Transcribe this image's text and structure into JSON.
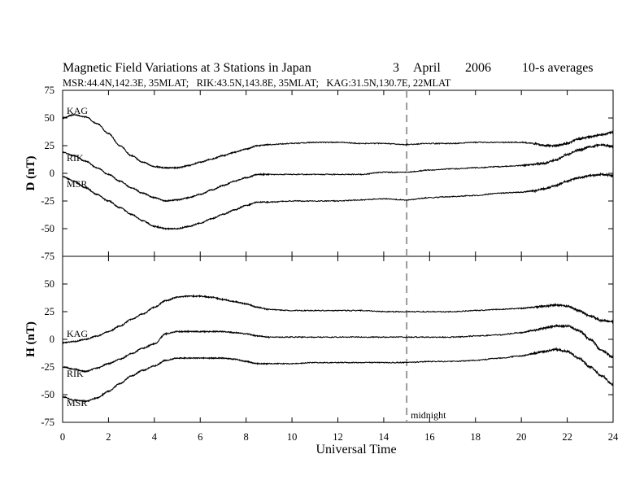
{
  "chart_data": {
    "type": "line",
    "title": "Magnetic Field Variations at 3 Stations in Japan",
    "date_day": "3",
    "date_month": "April",
    "date_year": "2006",
    "averaging": "10-s averages",
    "subtitle": "MSR:44.4N,142.3E, 35MLAT;   RIK:43.5N,143.8E, 35MLAT;   KAG:31.5N,130.7E, 22MLAT",
    "xlabel": "Universal Time",
    "xlim": [
      0,
      24
    ],
    "xticks": [
      0,
      2,
      4,
      6,
      8,
      10,
      12,
      14,
      16,
      18,
      20,
      22,
      24
    ],
    "midnight_ut": 15,
    "midnight_label": "midnight",
    "grid": false,
    "panels": [
      {
        "ylabel": "D (nT)",
        "ylim": [
          -75,
          75
        ],
        "yticks": [
          -75,
          -50,
          -25,
          0,
          25,
          50,
          75
        ],
        "series": [
          {
            "name": "KAG",
            "x": [
              0,
              0.5,
              1,
              1.5,
              2,
              2.5,
              3,
              3.5,
              4,
              4.5,
              5,
              5.5,
              6,
              6.5,
              7,
              7.5,
              8,
              8.5,
              9,
              10,
              11,
              12,
              13,
              14,
              15,
              16,
              17,
              18,
              19,
              20,
              20.5,
              21,
              21.5,
              22,
              22.5,
              23,
              23.5,
              24
            ],
            "y": [
              50,
              53,
              51,
              45,
              36,
              25,
              16,
              10,
              6,
              5,
              5,
              7,
              10,
              13,
              16,
              19,
              22,
              25,
              26,
              27,
              28,
              28,
              27,
              27,
              26,
              27,
              27,
              28,
              28,
              28,
              27,
              25,
              25,
              27,
              31,
              33,
              35,
              37
            ]
          },
          {
            "name": "RIK",
            "x": [
              0,
              0.5,
              1,
              1.5,
              2,
              2.5,
              3,
              3.5,
              4,
              4.5,
              5,
              5.5,
              6,
              6.5,
              7,
              7.5,
              8,
              8.5,
              9,
              10,
              11,
              12,
              13,
              14,
              15,
              16,
              17,
              18,
              19,
              20,
              20.5,
              21,
              21.5,
              22,
              22.5,
              23,
              23.5,
              24
            ],
            "y": [
              19,
              16,
              11,
              5,
              -1,
              -7,
              -13,
              -18,
              -22,
              -25,
              -24,
              -22,
              -19,
              -15,
              -11,
              -7,
              -4,
              -1,
              -1,
              -1,
              -1,
              -1,
              -1,
              1,
              1,
              3,
              4,
              5,
              6,
              7,
              8,
              9,
              12,
              17,
              21,
              24,
              26,
              24
            ]
          },
          {
            "name": "MSR",
            "x": [
              0,
              0.5,
              1,
              1.5,
              2,
              2.5,
              3,
              3.5,
              4,
              4.5,
              5,
              5.5,
              6,
              6.5,
              7,
              7.5,
              8,
              8.5,
              9,
              10,
              11,
              12,
              13,
              14,
              15,
              16,
              17,
              18,
              19,
              20,
              20.5,
              21,
              21.5,
              22,
              22.5,
              23,
              23.5,
              24
            ],
            "y": [
              -3,
              -7,
              -13,
              -19,
              -25,
              -31,
              -37,
              -43,
              -48,
              -50,
              -50,
              -48,
              -45,
              -41,
              -37,
              -33,
              -29,
              -26,
              -26,
              -25,
              -25,
              -25,
              -24,
              -23,
              -24,
              -22,
              -21,
              -20,
              -18,
              -17,
              -16,
              -14,
              -11,
              -7,
              -4,
              -2,
              -1,
              -2
            ]
          }
        ]
      },
      {
        "ylabel": "H (nT)",
        "ylim": [
          -75,
          75
        ],
        "yticks": [
          -75,
          -50,
          -25,
          0,
          25,
          50,
          75
        ],
        "series": [
          {
            "name": "KAG",
            "x": [
              0,
              0.5,
              1,
              1.5,
              2,
              2.5,
              3,
              3.5,
              4,
              4.5,
              5,
              5.5,
              6,
              6.5,
              7,
              7.5,
              8,
              8.5,
              9,
              10,
              11,
              12,
              13,
              14,
              15,
              16,
              17,
              18,
              19,
              20,
              20.5,
              21,
              21.5,
              22,
              22.5,
              23,
              23.5,
              24
            ],
            "y": [
              -3,
              -2,
              0,
              3,
              7,
              12,
              18,
              23,
              29,
              35,
              38,
              39,
              39,
              38,
              36,
              34,
              32,
              29,
              27,
              26,
              26,
              26,
              26,
              25,
              25,
              25,
              25,
              26,
              27,
              28,
              29,
              30,
              31,
              30,
              26,
              21,
              17,
              16
            ]
          },
          {
            "name": "RIK",
            "x": [
              0,
              0.5,
              1,
              1.5,
              2,
              2.5,
              3,
              3.5,
              4,
              4.5,
              5,
              5.5,
              6,
              6.5,
              7,
              7.5,
              8,
              8.5,
              9,
              10,
              11,
              12,
              13,
              14,
              15,
              16,
              17,
              18,
              19,
              20,
              20.5,
              21,
              21.5,
              22,
              22.5,
              23,
              23.5,
              24
            ],
            "y": [
              -25,
              -27,
              -29,
              -26,
              -22,
              -18,
              -13,
              -8,
              -4,
              5,
              7,
              7,
              7,
              7,
              7,
              6,
              5,
              3,
              2,
              2,
              2,
              2,
              2,
              2,
              2,
              2,
              2,
              3,
              4,
              6,
              8,
              10,
              12,
              12,
              8,
              0,
              -10,
              -16
            ]
          },
          {
            "name": "MSR",
            "x": [
              0,
              0.5,
              1,
              1.5,
              2,
              2.5,
              3,
              3.5,
              4,
              4.5,
              5,
              5.5,
              6,
              6.5,
              7,
              7.5,
              8,
              8.5,
              9,
              10,
              11,
              12,
              13,
              14,
              15,
              16,
              17,
              18,
              19,
              20,
              20.5,
              21,
              21.5,
              22,
              22.5,
              23,
              23.5,
              24
            ],
            "y": [
              -52,
              -55,
              -56,
              -53,
              -47,
              -40,
              -33,
              -28,
              -24,
              -19,
              -17,
              -17,
              -17,
              -17,
              -17,
              -18,
              -20,
              -22,
              -22,
              -22,
              -21,
              -21,
              -21,
              -21,
              -21,
              -20,
              -20,
              -19,
              -17,
              -15,
              -13,
              -11,
              -9,
              -11,
              -17,
              -25,
              -33,
              -41
            ]
          }
        ]
      }
    ]
  },
  "annotations": {
    "d_labels": [
      {
        "text": "KAG"
      },
      {
        "text": "RIK"
      },
      {
        "text": "MSR"
      }
    ],
    "h_labels": [
      {
        "text": "KAG"
      },
      {
        "text": "RIK"
      },
      {
        "text": "MSR"
      }
    ]
  }
}
